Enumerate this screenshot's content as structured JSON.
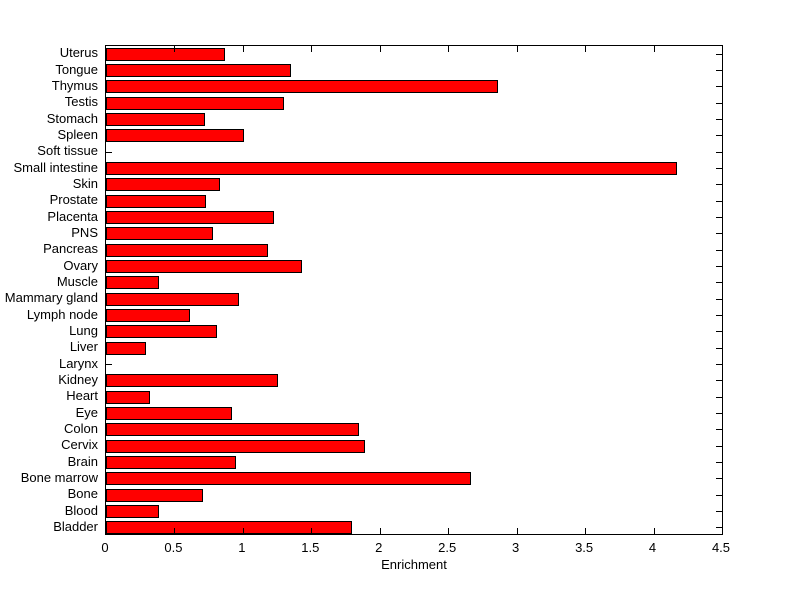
{
  "figure": {
    "background": "#ffffff",
    "axis_color": "#000000",
    "bar_fill": "#ff0000",
    "bar_edge": "#000000"
  },
  "chart_data": {
    "type": "bar",
    "orientation": "horizontal",
    "order": "top-to-bottom",
    "title": "",
    "xlabel": "Enrichment",
    "ylabel": "",
    "xlim": [
      0,
      4.5
    ],
    "xticks": [
      0,
      0.5,
      1,
      1.5,
      2,
      2.5,
      3,
      3.5,
      4,
      4.5
    ],
    "grid": false,
    "legend": null,
    "categories": [
      "Uterus",
      "Tongue",
      "Thymus",
      "Testis",
      "Stomach",
      "Spleen",
      "Soft tissue",
      "Small intestine",
      "Skin",
      "Prostate",
      "Placenta",
      "PNS",
      "Pancreas",
      "Ovary",
      "Muscle",
      "Mammary gland",
      "Lymph node",
      "Lung",
      "Liver",
      "Larynx",
      "Kidney",
      "Heart",
      "Eye",
      "Colon",
      "Cervix",
      "Brain",
      "Bone marrow",
      "Bone",
      "Blood",
      "Bladder"
    ],
    "values": [
      0.87,
      1.35,
      2.86,
      1.3,
      0.72,
      1.01,
      0.01,
      4.17,
      0.83,
      0.73,
      1.23,
      0.78,
      1.18,
      1.43,
      0.39,
      0.97,
      0.61,
      0.81,
      0.29,
      0.01,
      1.26,
      0.32,
      0.92,
      1.85,
      1.89,
      0.95,
      2.67,
      0.71,
      0.39,
      1.8
    ]
  }
}
